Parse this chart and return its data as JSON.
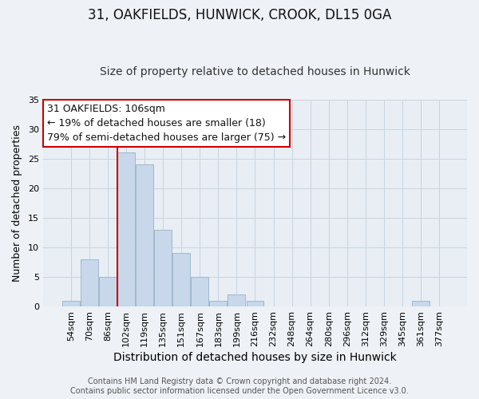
{
  "title": "31, OAKFIELDS, HUNWICK, CROOK, DL15 0GA",
  "subtitle": "Size of property relative to detached houses in Hunwick",
  "xlabel": "Distribution of detached houses by size in Hunwick",
  "ylabel": "Number of detached properties",
  "bar_labels": [
    "54sqm",
    "70sqm",
    "86sqm",
    "102sqm",
    "119sqm",
    "135sqm",
    "151sqm",
    "167sqm",
    "183sqm",
    "199sqm",
    "216sqm",
    "232sqm",
    "248sqm",
    "264sqm",
    "280sqm",
    "296sqm",
    "312sqm",
    "329sqm",
    "345sqm",
    "361sqm",
    "377sqm"
  ],
  "bar_values": [
    1,
    8,
    5,
    26,
    24,
    13,
    9,
    5,
    1,
    2,
    1,
    0,
    0,
    0,
    0,
    0,
    0,
    0,
    0,
    1,
    0
  ],
  "bar_color": "#c8d8ea",
  "bar_edge_color": "#a0b8cc",
  "vline_index": 3,
  "vline_color": "#cc0000",
  "ylim": [
    0,
    35
  ],
  "yticks": [
    0,
    5,
    10,
    15,
    20,
    25,
    30,
    35
  ],
  "annotation_text": "31 OAKFIELDS: 106sqm\n← 19% of detached houses are smaller (18)\n79% of semi-detached houses are larger (75) →",
  "footer_text": "Contains HM Land Registry data © Crown copyright and database right 2024.\nContains public sector information licensed under the Open Government Licence v3.0.",
  "background_color": "#eef2f6",
  "plot_bg_color": "#e8eef4",
  "grid_color": "#c8d4e0",
  "title_fontsize": 12,
  "subtitle_fontsize": 10,
  "xlabel_fontsize": 10,
  "ylabel_fontsize": 9,
  "footer_fontsize": 7,
  "tick_fontsize": 8,
  "ann_fontsize": 9
}
